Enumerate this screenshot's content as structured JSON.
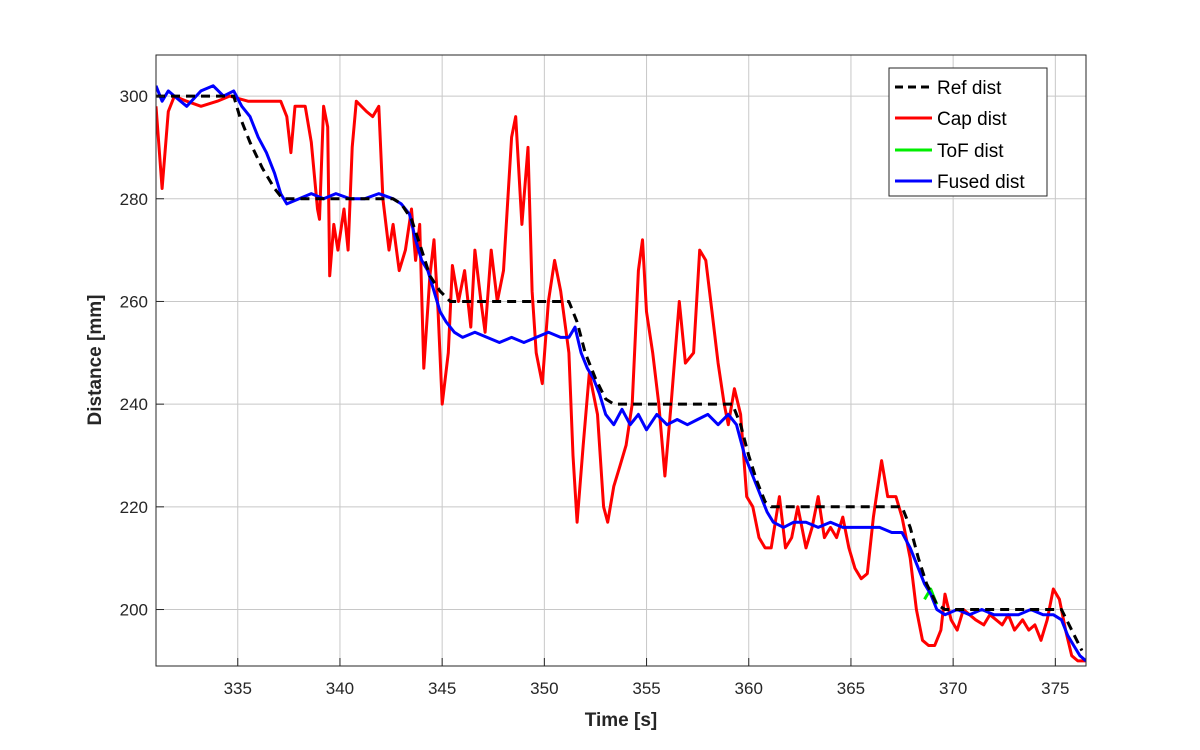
{
  "chart_data": {
    "type": "line",
    "title": "",
    "xlabel": "Time [s]",
    "ylabel": "Distance [mm]",
    "xlim": [
      331,
      376.5
    ],
    "ylim": [
      189,
      308
    ],
    "xticks": [
      335,
      340,
      345,
      350,
      355,
      360,
      365,
      370,
      375
    ],
    "yticks": [
      200,
      220,
      240,
      260,
      280,
      300
    ],
    "grid": true,
    "legend_position": "top-right",
    "series": [
      {
        "name": "Ref dist",
        "color": "#000000",
        "dash": true,
        "points": [
          [
            331,
            300
          ],
          [
            334.8,
            300
          ],
          [
            335.1,
            296
          ],
          [
            335.6,
            291
          ],
          [
            336.2,
            286
          ],
          [
            336.8,
            282
          ],
          [
            337.2,
            280
          ],
          [
            342.6,
            280
          ],
          [
            343.0,
            279
          ],
          [
            343.5,
            276
          ],
          [
            344.0,
            270
          ],
          [
            344.4,
            265
          ],
          [
            344.9,
            262
          ],
          [
            345.4,
            260
          ],
          [
            351.2,
            260
          ],
          [
            351.6,
            256
          ],
          [
            352.0,
            250
          ],
          [
            352.5,
            245
          ],
          [
            353.0,
            241
          ],
          [
            353.4,
            240
          ],
          [
            359.2,
            240
          ],
          [
            359.6,
            236
          ],
          [
            360.0,
            230
          ],
          [
            360.4,
            225
          ],
          [
            360.8,
            221
          ],
          [
            361.1,
            220
          ],
          [
            367.5,
            220
          ],
          [
            367.9,
            216
          ],
          [
            368.3,
            210
          ],
          [
            368.7,
            205
          ],
          [
            369.2,
            201
          ],
          [
            369.6,
            200
          ],
          [
            375.3,
            200
          ],
          [
            375.8,
            196
          ],
          [
            376.3,
            192
          ]
        ]
      },
      {
        "name": "Cap dist",
        "color": "#ff0000",
        "points": [
          [
            331,
            298
          ],
          [
            331.3,
            282
          ],
          [
            331.6,
            297
          ],
          [
            331.9,
            300
          ],
          [
            332.5,
            299
          ],
          [
            333.2,
            298
          ],
          [
            334.0,
            299
          ],
          [
            334.6,
            300
          ],
          [
            335.5,
            299
          ],
          [
            336.2,
            299
          ],
          [
            337.1,
            299
          ],
          [
            337.4,
            296
          ],
          [
            337.6,
            289
          ],
          [
            337.8,
            298
          ],
          [
            338.3,
            298
          ],
          [
            338.6,
            291
          ],
          [
            338.9,
            278
          ],
          [
            339.0,
            276
          ],
          [
            339.2,
            298
          ],
          [
            339.4,
            294
          ],
          [
            339.5,
            265
          ],
          [
            339.7,
            275
          ],
          [
            339.9,
            270
          ],
          [
            340.2,
            278
          ],
          [
            340.4,
            270
          ],
          [
            340.6,
            290
          ],
          [
            340.8,
            299
          ],
          [
            341.3,
            297
          ],
          [
            341.6,
            296
          ],
          [
            341.9,
            298
          ],
          [
            342.1,
            280
          ],
          [
            342.4,
            270
          ],
          [
            342.6,
            275
          ],
          [
            342.9,
            266
          ],
          [
            343.2,
            270
          ],
          [
            343.5,
            278
          ],
          [
            343.7,
            268
          ],
          [
            343.9,
            275
          ],
          [
            344.1,
            247
          ],
          [
            344.4,
            265
          ],
          [
            344.6,
            272
          ],
          [
            344.8,
            258
          ],
          [
            345.0,
            240
          ],
          [
            345.3,
            250
          ],
          [
            345.5,
            267
          ],
          [
            345.8,
            260
          ],
          [
            346.1,
            266
          ],
          [
            346.4,
            255
          ],
          [
            346.6,
            270
          ],
          [
            346.9,
            260
          ],
          [
            347.1,
            254
          ],
          [
            347.4,
            270
          ],
          [
            347.7,
            260
          ],
          [
            348.0,
            266
          ],
          [
            348.4,
            292
          ],
          [
            348.6,
            296
          ],
          [
            348.9,
            275
          ],
          [
            349.2,
            290
          ],
          [
            349.4,
            262
          ],
          [
            349.6,
            250
          ],
          [
            349.9,
            244
          ],
          [
            350.2,
            260
          ],
          [
            350.5,
            268
          ],
          [
            350.8,
            262
          ],
          [
            351.2,
            250
          ],
          [
            351.4,
            230
          ],
          [
            351.6,
            217
          ],
          [
            351.9,
            232
          ],
          [
            352.2,
            246
          ],
          [
            352.6,
            238
          ],
          [
            352.9,
            220
          ],
          [
            353.1,
            217
          ],
          [
            353.4,
            224
          ],
          [
            353.7,
            228
          ],
          [
            354.0,
            232
          ],
          [
            354.3,
            240
          ],
          [
            354.6,
            266
          ],
          [
            354.8,
            272
          ],
          [
            355.0,
            258
          ],
          [
            355.3,
            250
          ],
          [
            355.6,
            240
          ],
          [
            355.9,
            226
          ],
          [
            356.2,
            240
          ],
          [
            356.6,
            260
          ],
          [
            356.9,
            248
          ],
          [
            357.3,
            250
          ],
          [
            357.6,
            270
          ],
          [
            357.9,
            268
          ],
          [
            358.2,
            258
          ],
          [
            358.5,
            248
          ],
          [
            358.8,
            240
          ],
          [
            359.0,
            236
          ],
          [
            359.3,
            243
          ],
          [
            359.6,
            238
          ],
          [
            359.9,
            222
          ],
          [
            360.2,
            220
          ],
          [
            360.5,
            214
          ],
          [
            360.8,
            212
          ],
          [
            361.1,
            212
          ],
          [
            361.5,
            222
          ],
          [
            361.8,
            212
          ],
          [
            362.1,
            214
          ],
          [
            362.4,
            220
          ],
          [
            362.8,
            212
          ],
          [
            363.1,
            216
          ],
          [
            363.4,
            222
          ],
          [
            363.7,
            214
          ],
          [
            364.0,
            216
          ],
          [
            364.3,
            214
          ],
          [
            364.6,
            218
          ],
          [
            364.9,
            212
          ],
          [
            365.2,
            208
          ],
          [
            365.5,
            206
          ],
          [
            365.8,
            207
          ],
          [
            366.1,
            218
          ],
          [
            366.5,
            229
          ],
          [
            366.8,
            222
          ],
          [
            367.2,
            222
          ],
          [
            367.5,
            218
          ],
          [
            367.9,
            210
          ],
          [
            368.2,
            200
          ],
          [
            368.5,
            194
          ],
          [
            368.8,
            193
          ],
          [
            369.1,
            193
          ],
          [
            369.4,
            196
          ],
          [
            369.6,
            203
          ],
          [
            369.9,
            198
          ],
          [
            370.2,
            196
          ],
          [
            370.5,
            200
          ],
          [
            370.8,
            199
          ],
          [
            371.1,
            198
          ],
          [
            371.5,
            197
          ],
          [
            371.8,
            199
          ],
          [
            372.1,
            198
          ],
          [
            372.4,
            197
          ],
          [
            372.7,
            199
          ],
          [
            373.0,
            196
          ],
          [
            373.4,
            198
          ],
          [
            373.7,
            196
          ],
          [
            374.0,
            197
          ],
          [
            374.3,
            194
          ],
          [
            374.6,
            198
          ],
          [
            374.9,
            204
          ],
          [
            375.2,
            202
          ],
          [
            375.5,
            196
          ],
          [
            375.8,
            191
          ],
          [
            376.1,
            190
          ],
          [
            376.5,
            190
          ]
        ]
      },
      {
        "name": "ToF dist",
        "color": "#00ee00",
        "points": [
          [
            368.6,
            202
          ],
          [
            368.9,
            204
          ],
          [
            369.2,
            201
          ]
        ]
      },
      {
        "name": "Fused dist",
        "color": "#0000ff",
        "points": [
          [
            331,
            302
          ],
          [
            331.3,
            299
          ],
          [
            331.6,
            301
          ],
          [
            331.9,
            300
          ],
          [
            332.5,
            298
          ],
          [
            333.2,
            301
          ],
          [
            333.8,
            302
          ],
          [
            334.3,
            300
          ],
          [
            334.8,
            301
          ],
          [
            335.2,
            298
          ],
          [
            335.6,
            296
          ],
          [
            336.0,
            292
          ],
          [
            336.4,
            289
          ],
          [
            336.8,
            285
          ],
          [
            337.1,
            281
          ],
          [
            337.4,
            279
          ],
          [
            338.0,
            280
          ],
          [
            338.6,
            281
          ],
          [
            339.2,
            280
          ],
          [
            339.8,
            281
          ],
          [
            340.5,
            280
          ],
          [
            341.2,
            280
          ],
          [
            341.9,
            281
          ],
          [
            342.6,
            280
          ],
          [
            343.0,
            279
          ],
          [
            343.4,
            277
          ],
          [
            343.7,
            272
          ],
          [
            344.0,
            268
          ],
          [
            344.3,
            266
          ],
          [
            344.6,
            262
          ],
          [
            344.9,
            258
          ],
          [
            345.2,
            256
          ],
          [
            345.6,
            254
          ],
          [
            346.0,
            253
          ],
          [
            346.6,
            254
          ],
          [
            347.2,
            253
          ],
          [
            347.8,
            252
          ],
          [
            348.4,
            253
          ],
          [
            349.0,
            252
          ],
          [
            349.6,
            253
          ],
          [
            350.2,
            254
          ],
          [
            350.8,
            253
          ],
          [
            351.2,
            253
          ],
          [
            351.5,
            255
          ],
          [
            351.8,
            250
          ],
          [
            352.1,
            247
          ],
          [
            352.4,
            245
          ],
          [
            352.7,
            242
          ],
          [
            353.0,
            238
          ],
          [
            353.4,
            236
          ],
          [
            353.8,
            239
          ],
          [
            354.2,
            236
          ],
          [
            354.6,
            238
          ],
          [
            355.0,
            235
          ],
          [
            355.5,
            238
          ],
          [
            356.0,
            236
          ],
          [
            356.5,
            237
          ],
          [
            357.0,
            236
          ],
          [
            357.5,
            237
          ],
          [
            358.0,
            238
          ],
          [
            358.5,
            236
          ],
          [
            359.0,
            238
          ],
          [
            359.4,
            236
          ],
          [
            359.8,
            230
          ],
          [
            360.2,
            226
          ],
          [
            360.6,
            222
          ],
          [
            360.9,
            219
          ],
          [
            361.2,
            217
          ],
          [
            361.7,
            216
          ],
          [
            362.2,
            217
          ],
          [
            362.8,
            217
          ],
          [
            363.4,
            216
          ],
          [
            364.0,
            217
          ],
          [
            364.6,
            216
          ],
          [
            365.2,
            216
          ],
          [
            365.8,
            216
          ],
          [
            366.4,
            216
          ],
          [
            367.0,
            215
          ],
          [
            367.5,
            215
          ],
          [
            367.9,
            212
          ],
          [
            368.3,
            208
          ],
          [
            368.6,
            205
          ],
          [
            368.9,
            203
          ],
          [
            369.2,
            200
          ],
          [
            369.6,
            199
          ],
          [
            370.2,
            200
          ],
          [
            370.8,
            199
          ],
          [
            371.4,
            200
          ],
          [
            372.0,
            199
          ],
          [
            372.6,
            199
          ],
          [
            373.2,
            199
          ],
          [
            373.8,
            200
          ],
          [
            374.4,
            199
          ],
          [
            374.9,
            199
          ],
          [
            375.3,
            198
          ],
          [
            375.6,
            195
          ],
          [
            375.9,
            193
          ],
          [
            376.2,
            191
          ],
          [
            376.5,
            190
          ]
        ]
      }
    ]
  }
}
